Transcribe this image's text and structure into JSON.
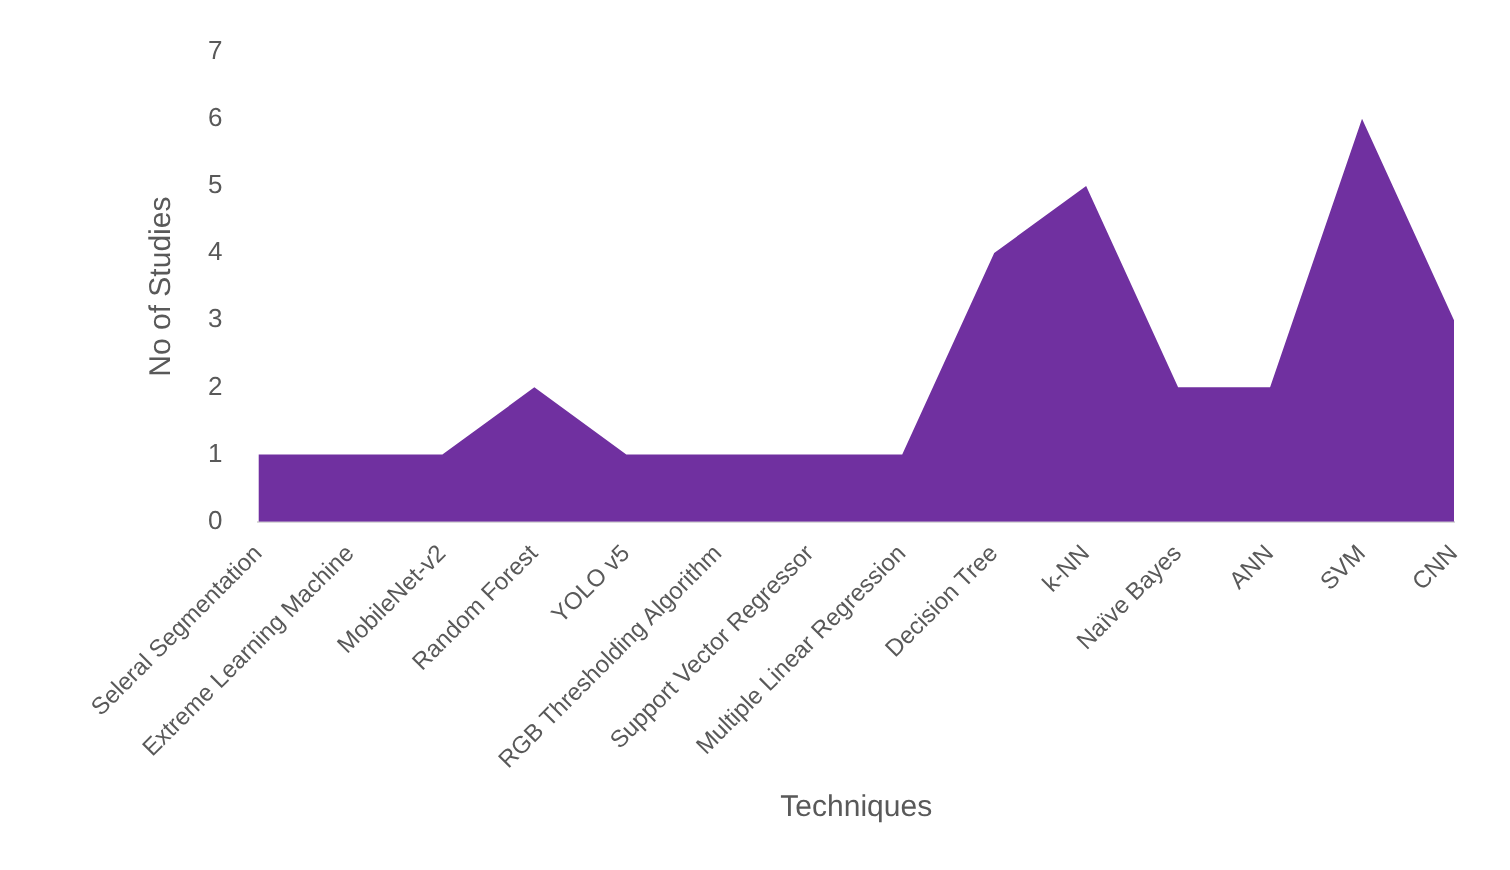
{
  "chart_data": {
    "type": "area",
    "xlabel": "Techniques",
    "ylabel": "No of Studies",
    "categories": [
      "Seleral Segmentation",
      "Extreme Learning Machine",
      "MobileNet-v2",
      "Random Forest",
      "YOLO v5",
      "RGB Thresholding Algorithm",
      "Support Vector Regressor",
      "Multiple Linear Regression",
      "Decision Tree",
      "k-NN",
      "Naïve Bayes",
      "ANN",
      "SVM",
      "CNN"
    ],
    "series": [
      {
        "color": "#7030a0",
        "values": [
          1,
          1,
          1,
          2,
          1,
          1,
          1,
          1,
          4,
          5,
          2,
          2,
          6,
          3
        ]
      }
    ],
    "ylim": [
      0,
      7
    ],
    "yticks": [
      0,
      1,
      2,
      3,
      4,
      5,
      6,
      7
    ],
    "grid": false,
    "legend": false
  }
}
